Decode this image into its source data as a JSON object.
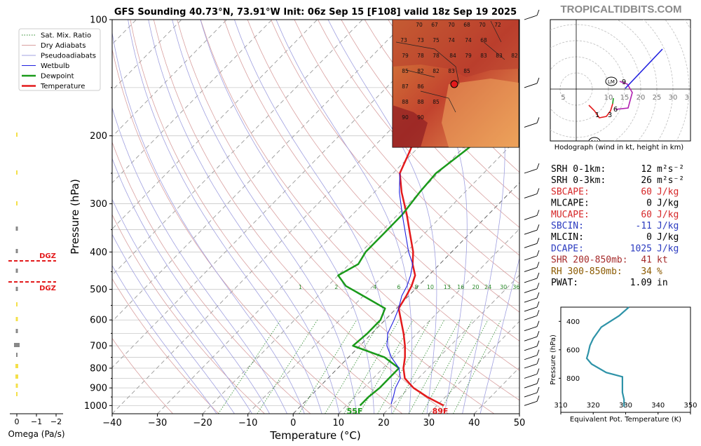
{
  "header": {
    "title": "GFS Sounding 40.73°N, 73.91°W Init: 06z Sep 15 [F108] valid 18z Sep 19 2025",
    "brand": "TROPICALTIDBITS.COM"
  },
  "legend": [
    "Sat. Mix. Ratio",
    "Dry Adiabats",
    "Pseudoadiabats",
    "Wetbulb",
    "Dewpoint",
    "Temperature"
  ],
  "colors": {
    "temperature": "#e31a1c",
    "dewpoint": "#1a9a1a",
    "wetbulb": "#1f1fdf",
    "dry": "#d9a0a0",
    "moist": "#a0a0e0",
    "mix": "#2a8a2a",
    "accent": "#b22222"
  },
  "chart_data": [
    {
      "type": "line",
      "name": "skewt",
      "xlabel": "Temperature (°C)",
      "ylabel": "Pressure (hPa)",
      "xlim": [
        -40,
        50
      ],
      "ylim": [
        1050,
        100
      ],
      "yscale": "log",
      "x_ticks": [
        "−40",
        "−30",
        "−20",
        "−10",
        "0",
        "10",
        "20",
        "30",
        "40",
        "50"
      ],
      "y_ticks": [
        "100",
        "200",
        "300",
        "400",
        "500",
        "600",
        "700",
        "800",
        "900",
        "1000"
      ],
      "surface_temp_label": "89F",
      "surface_dewpoint_label": "55F",
      "mix_ratio_labels": [
        "1",
        "2",
        "4",
        "6",
        "8",
        "10",
        "13",
        "16",
        "20",
        "24",
        "30",
        "36"
      ],
      "series": [
        {
          "name": "Temperature",
          "points": [
            [
              1000,
              31.5
            ],
            [
              950,
              26
            ],
            [
              900,
              21
            ],
            [
              850,
              17
            ],
            [
              800,
              14.5
            ],
            [
              750,
              12.5
            ],
            [
              700,
              10
            ],
            [
              650,
              7
            ],
            [
              600,
              3.5
            ],
            [
              560,
              0.5
            ],
            [
              520,
              -0.5
            ],
            [
              490,
              -1.5
            ],
            [
              460,
              -3
            ],
            [
              430,
              -6
            ],
            [
              400,
              -8.5
            ],
            [
              360,
              -13
            ],
            [
              320,
              -18
            ],
            [
              280,
              -24
            ],
            [
              250,
              -28.5
            ],
            [
              220,
              -31
            ],
            [
              200,
              -33
            ],
            [
              170,
              -29
            ],
            [
              140,
              -24
            ],
            [
              120,
              -20
            ],
            [
              100,
              -16.5
            ]
          ]
        },
        {
          "name": "Dewpoint",
          "points": [
            [
              1000,
              13
            ],
            [
              950,
              13
            ],
            [
              900,
              13.5
            ],
            [
              850,
              13.5
            ],
            [
              800,
              13.5
            ],
            [
              750,
              8
            ],
            [
              700,
              -1.5
            ],
            [
              650,
              -1
            ],
            [
              600,
              -1
            ],
            [
              560,
              -2.5
            ],
            [
              520,
              -10
            ],
            [
              490,
              -16
            ],
            [
              460,
              -20
            ],
            [
              430,
              -18
            ],
            [
              400,
              -19
            ],
            [
              360,
              -19
            ],
            [
              320,
              -19
            ],
            [
              280,
              -20
            ],
            [
              250,
              -20.5
            ],
            [
              220,
              -19
            ],
            [
              200,
              -18
            ],
            [
              170,
              -19
            ],
            [
              150,
              -20
            ],
            [
              130,
              -20
            ],
            [
              100,
              -19
            ]
          ]
        },
        {
          "name": "Wetbulb",
          "points": [
            [
              990,
              19.5
            ],
            [
              950,
              18.5
            ],
            [
              900,
              17
            ],
            [
              850,
              16
            ],
            [
              800,
              13.5
            ],
            [
              750,
              9.5
            ],
            [
              700,
              6
            ],
            [
              650,
              3.5
            ],
            [
              600,
              2
            ],
            [
              560,
              0.5
            ],
            [
              520,
              -1.5
            ],
            [
              490,
              -2.5
            ],
            [
              460,
              -4
            ],
            [
              430,
              -6
            ],
            [
              400,
              -9.5
            ],
            [
              360,
              -14
            ],
            [
              320,
              -19
            ],
            [
              280,
              -24.5
            ],
            [
              250,
              -28.5
            ]
          ]
        }
      ],
      "dgz": [
        "DGZ",
        "DGZ"
      ]
    },
    {
      "type": "line",
      "name": "hodograph",
      "title": "Hodograph (wind in kt, height in km)",
      "ring_labels": [
        "5",
        "10",
        "15",
        "20",
        "25",
        "30",
        "35",
        "40"
      ],
      "height_labels": [
        "1",
        "3",
        "6",
        "9"
      ],
      "markers": [
        "LM",
        "RM"
      ]
    },
    {
      "type": "line",
      "name": "theta-e",
      "xlabel": "Equivalent Pot. Temperature (K)",
      "ylabel": "Pressure (hPa)",
      "xlim": [
        310,
        350
      ],
      "x_ticks": [
        "310",
        "320",
        "330",
        "340",
        "350"
      ],
      "y_ticks": [
        "400",
        "600",
        "800"
      ],
      "points": [
        [
          300,
          331
        ],
        [
          360,
          328
        ],
        [
          440,
          322.5
        ],
        [
          520,
          320
        ],
        [
          570,
          319
        ],
        [
          620,
          318.5
        ],
        [
          660,
          318
        ],
        [
          700,
          319.5
        ],
        [
          760,
          324
        ],
        [
          790,
          329
        ],
        [
          850,
          329
        ],
        [
          900,
          329
        ],
        [
          950,
          329.5
        ],
        [
          1000,
          329.5
        ]
      ]
    },
    {
      "type": "bar",
      "name": "omega",
      "xlabel": "Omega (Pa/s)",
      "x_ticks": [
        "0",
        "−1",
        "−2"
      ]
    }
  ],
  "indices": [
    {
      "label": "SRH 0-1km:",
      "value": "12",
      "unit": "m²s⁻²",
      "color": "#000000"
    },
    {
      "label": "SRH 0-3km:",
      "value": "26",
      "unit": "m²s⁻²",
      "color": "#000000"
    },
    {
      "label": "SBCAPE:",
      "value": "60",
      "unit": "J/kg",
      "color": "#d62728"
    },
    {
      "label": "MLCAPE:",
      "value": "0",
      "unit": "J/kg",
      "color": "#000000"
    },
    {
      "label": "MUCAPE:",
      "value": "60",
      "unit": "J/kg",
      "color": "#d62728"
    },
    {
      "label": "SBCIN:",
      "value": "-11",
      "unit": "J/kg",
      "color": "#2b3bc0"
    },
    {
      "label": "MLCIN:",
      "value": "0",
      "unit": "J/kg",
      "color": "#000000"
    },
    {
      "label": "DCAPE:",
      "value": "1025",
      "unit": "J/kg",
      "color": "#2b3bc0"
    },
    {
      "label": "SHR 200-850mb:",
      "value": "41",
      "unit": "kt",
      "color": "#a52a2a"
    },
    {
      "label": "RH 300-850mb:",
      "value": "34",
      "unit": "%",
      "color": "#8b5a00"
    },
    {
      "label": "PWAT:",
      "value": "1.09",
      "unit": "in",
      "color": "#000000"
    }
  ],
  "map_labels": [
    "70",
    "67",
    "70",
    "68",
    "70",
    "72",
    "73",
    "73",
    "75",
    "74",
    "74",
    "68",
    "79",
    "78",
    "78",
    "84",
    "79",
    "83",
    "83",
    "82",
    "85",
    "82",
    "82",
    "83",
    "85",
    "87",
    "86",
    "88",
    "88",
    "85",
    "90",
    "90"
  ]
}
